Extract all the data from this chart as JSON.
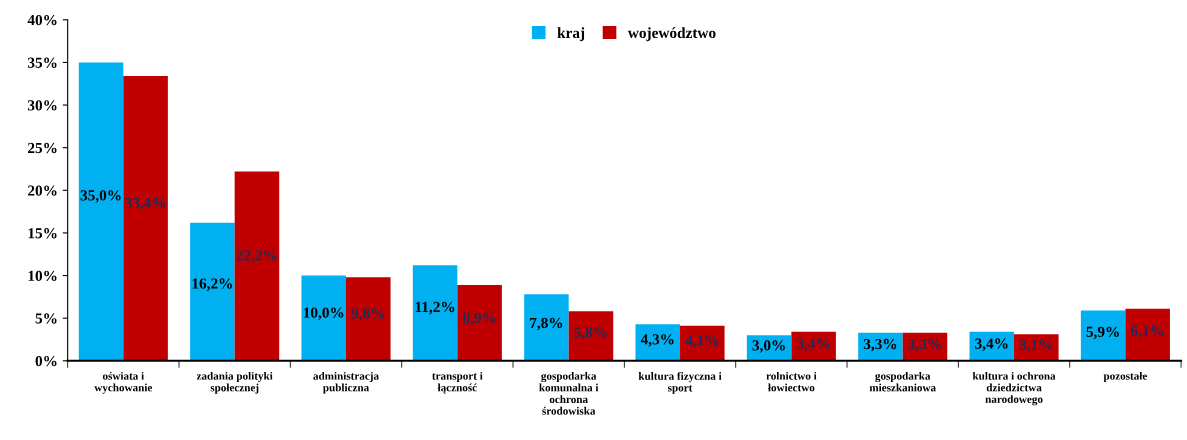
{
  "chart_data": {
    "type": "bar",
    "categories": [
      "oświata i\nwychowanie",
      "zadania polityki\nspołecznej",
      "administracja\npubliczna",
      "transport i\nłączność",
      "gospodarka\nkomunalna i\nochrona\nśrodowiska",
      "kultura fizyczna i\nsport",
      "rolnictwo i\nłowiectwo",
      "gospodarka\nmieszkaniowa",
      "kultura i ochrona\ndziedzictwa\nnarodowego",
      "pozostałe"
    ],
    "series": [
      {
        "name": "kraj",
        "color": "#00b0f0",
        "values": [
          35.0,
          16.2,
          10.0,
          11.2,
          7.8,
          4.3,
          3.0,
          3.3,
          3.4,
          5.9
        ],
        "value_labels": [
          "35,0%",
          "16,2%",
          "10,0%",
          "11,2%",
          "7,8%",
          "4,3%",
          "3,0%",
          "3,3%",
          "3,4%",
          "5,9%"
        ]
      },
      {
        "name": "województwo",
        "color": "#c00000",
        "values": [
          33.4,
          22.2,
          9.8,
          8.9,
          5.8,
          4.1,
          3.4,
          3.3,
          3.1,
          6.1
        ],
        "value_labels": [
          "33,4%",
          "22,2%",
          "9,8%",
          "8,9%",
          "5,8%",
          "4,1%",
          "3,4%",
          "3,3%",
          "3,1%",
          "6,1%"
        ]
      }
    ],
    "ylim": [
      0,
      40
    ],
    "yticks": [
      {
        "value": 0,
        "label": "0%"
      },
      {
        "value": 5,
        "label": "5%"
      },
      {
        "value": 10,
        "label": "10%"
      },
      {
        "value": 15,
        "label": "15%"
      },
      {
        "value": 20,
        "label": "20%"
      },
      {
        "value": 25,
        "label": "25%"
      },
      {
        "value": 30,
        "label": "30%"
      },
      {
        "value": 35,
        "label": "35%"
      },
      {
        "value": 40,
        "label": "40%"
      }
    ],
    "grid": false,
    "legend": "top"
  }
}
